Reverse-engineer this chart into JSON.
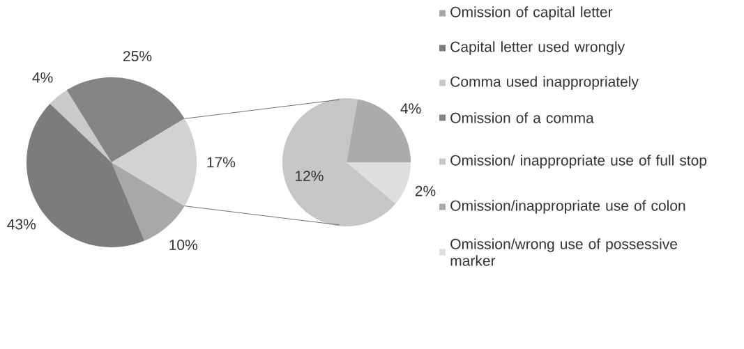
{
  "chart_data": [
    {
      "type": "pie",
      "categories": [
        "Omission of capital letter",
        "Capital letter used wrongly",
        "Comma used inappropriately",
        "Omission of a comma",
        null
      ],
      "values": [
        10,
        43,
        4,
        25,
        17
      ],
      "colors": [
        "#a8a8a8",
        "#7c7c7c",
        "#cacaca",
        "#858585",
        "#d2d2d2"
      ],
      "value_labels": [
        "10%",
        "43%",
        "4%",
        "25%",
        "17%"
      ],
      "legend": "right"
    },
    {
      "type": "pie",
      "categories": [
        "Omission/ inappropriate use of full stop",
        "Omission/inappropriate use of colon",
        "Omission/wrong use of possessive marker"
      ],
      "values": [
        12,
        4,
        2
      ],
      "colors": [
        "#c6c6c6",
        "#ababab",
        "#dedede"
      ],
      "value_labels": [
        "12%",
        "4%",
        "2%"
      ],
      "legend": "right"
    }
  ]
}
